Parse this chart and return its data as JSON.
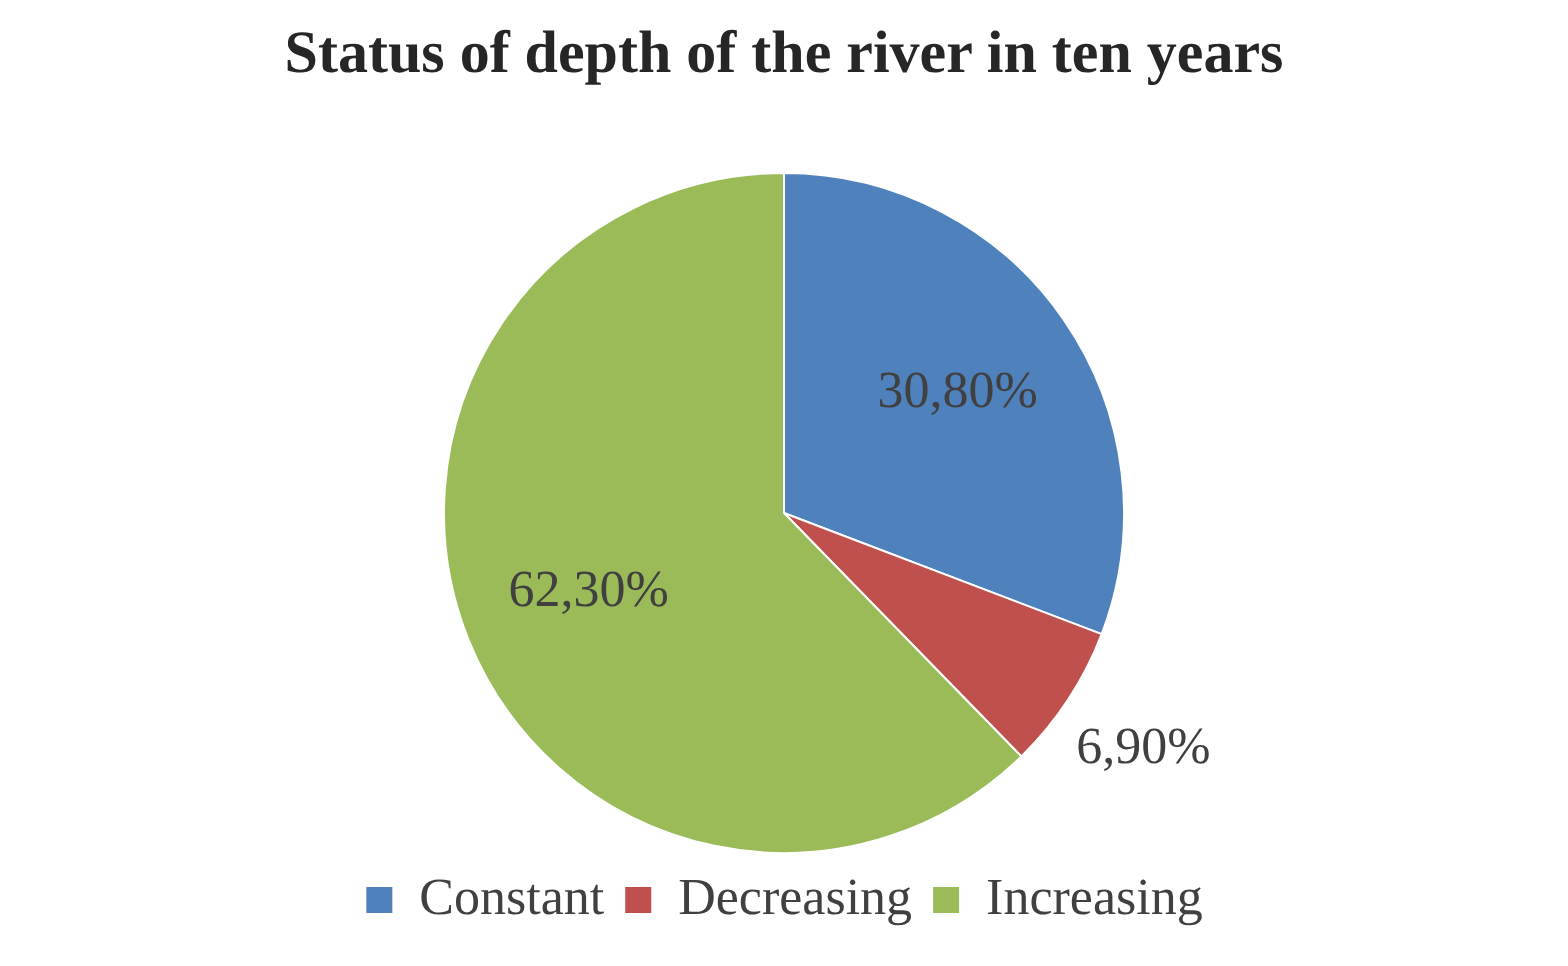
{
  "chart_data": {
    "type": "pie",
    "title": "Status of depth of the river in ten years",
    "categories": [
      "Constant",
      "Decreasing",
      "Increasing"
    ],
    "values": [
      30.8,
      6.9,
      62.3
    ],
    "value_labels": [
      "30,80%",
      "6,90%",
      "62,30%"
    ],
    "colors": [
      "#4f81bd",
      "#c0504d",
      "#9bbb59"
    ],
    "legend": "bottom"
  }
}
